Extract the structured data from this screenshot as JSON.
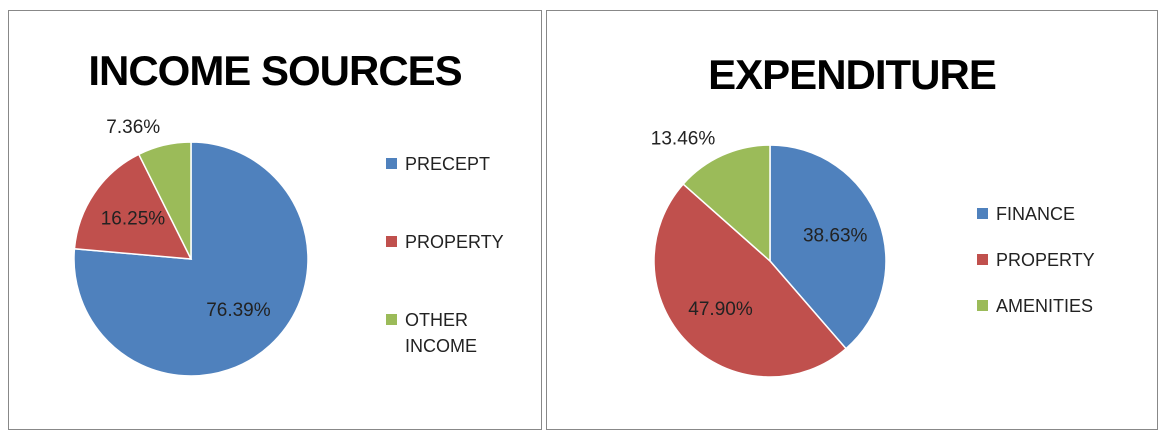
{
  "chart_data": [
    {
      "type": "pie",
      "title": "INCOME SOURCES",
      "categories": [
        "PRECEPT",
        "PROPERTY",
        "OTHER INCOME"
      ],
      "values": [
        76.39,
        16.25,
        7.36
      ],
      "value_labels": [
        "76.39%",
        "16.25%",
        "7.36%"
      ],
      "colors": [
        "#4f81bd",
        "#c0504d",
        "#9bbb59"
      ]
    },
    {
      "type": "pie",
      "title": "EXPENDITURE",
      "categories": [
        "FINANCE",
        "PROPERTY",
        "AMENITIES"
      ],
      "values": [
        38.63,
        47.9,
        13.46
      ],
      "value_labels": [
        "38.63%",
        "47.90%",
        "13.46%"
      ],
      "colors": [
        "#4f81bd",
        "#c0504d",
        "#9bbb59"
      ]
    }
  ]
}
